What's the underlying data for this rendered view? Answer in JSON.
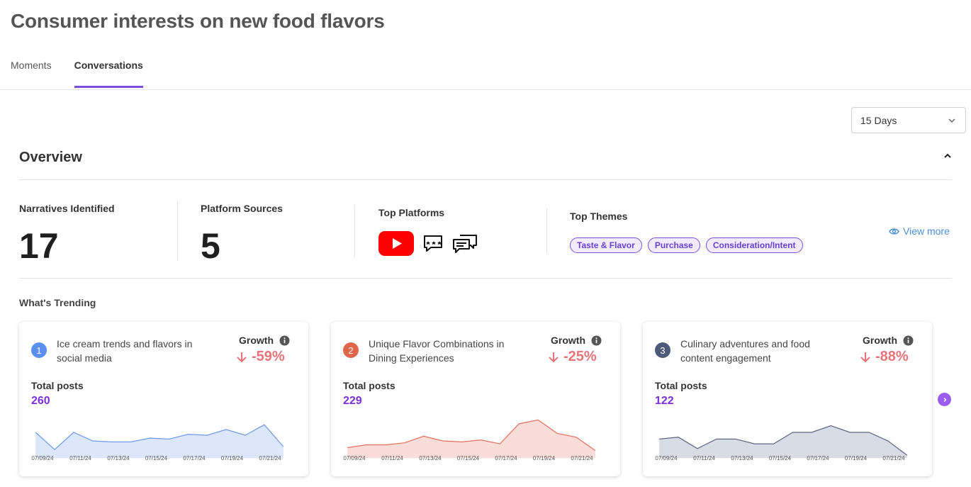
{
  "page": {
    "title": "Consumer interests on new food flavors"
  },
  "tabs": [
    {
      "label": "Moments",
      "active": false
    },
    {
      "label": "Conversations",
      "active": true
    }
  ],
  "range_select": {
    "value": "15 Days"
  },
  "overview": {
    "title": "Overview",
    "narratives": {
      "label": "Narratives Identified",
      "value": "17"
    },
    "sources": {
      "label": "Platform Sources",
      "value": "5"
    },
    "top_platforms": {
      "label": "Top Platforms",
      "icons": [
        "youtube-icon",
        "review-chat-icon",
        "forum-chat-icon"
      ]
    },
    "top_themes": {
      "label": "Top Themes",
      "chips": [
        "Taste & Flavor",
        "Purchase",
        "Consideration/Intent"
      ]
    },
    "view_more": "View more"
  },
  "trending": {
    "title": "What's Trending",
    "cards": [
      {
        "rank": "1",
        "rank_color": "#5b8ff0",
        "title": "Ice cream trends and flavors in social media",
        "growth_label": "Growth",
        "growth": "-59%",
        "posts_label": "Total posts",
        "posts": "260",
        "line_color": "#6e9ae8",
        "fill_color": "#dde7fb",
        "series": [
          27,
          9,
          27,
          18,
          17,
          17,
          21,
          20,
          25,
          24,
          30,
          24,
          35,
          12
        ],
        "dates": [
          "07/09/24",
          "07/11/24",
          "07/13/24",
          "07/15/24",
          "07/17/24",
          "07/19/24",
          "07/21/24"
        ]
      },
      {
        "rank": "2",
        "rank_color": "#e0664a",
        "title": "Unique Flavor Combinations in Dining Experiences",
        "growth_label": "Growth",
        "growth": "-25%",
        "posts_label": "Total posts",
        "posts": "229",
        "line_color": "#e2705f",
        "fill_color": "#fadcd8",
        "series": [
          11,
          14,
          14,
          16,
          23,
          18,
          17,
          19,
          15,
          36,
          40,
          26,
          22,
          8
        ],
        "dates": [
          "07/09/24",
          "07/11/24",
          "07/13/24",
          "07/15/24",
          "07/17/24",
          "07/19/24",
          "07/21/24"
        ]
      },
      {
        "rank": "3",
        "rank_color": "#4d5a7a",
        "title": "Culinary adventures and food content engagement",
        "growth_label": "Growth",
        "growth": "-88%",
        "posts_label": "Total posts",
        "posts": "122",
        "line_color": "#5c6680",
        "fill_color": "#d8dce5",
        "series": [
          20,
          22,
          10,
          20,
          20,
          15,
          15,
          27,
          27,
          34,
          27,
          27,
          18,
          3
        ],
        "dates": [
          "07/09/24",
          "07/11/24",
          "07/13/24",
          "07/15/24",
          "07/17/24",
          "07/19/24",
          "07/21/24"
        ]
      }
    ]
  }
}
